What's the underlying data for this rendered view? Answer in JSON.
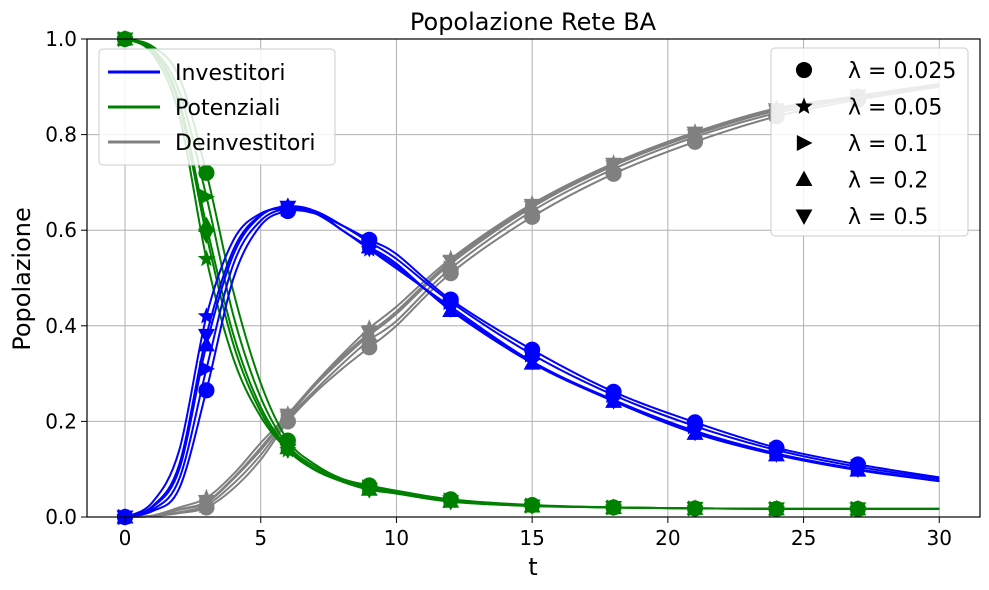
{
  "chart_data": {
    "type": "line",
    "title": "Popolazione Rete BA",
    "xlabel": "t",
    "ylabel": "Popolazione",
    "xlim": [
      -1.4,
      31.5
    ],
    "ylim": [
      0,
      1.0
    ],
    "xticks": [
      0,
      5,
      10,
      15,
      20,
      25,
      30
    ],
    "xtick_labels": [
      "0",
      "5",
      "10",
      "15",
      "20",
      "25",
      "30"
    ],
    "yticks": [
      0.0,
      0.2,
      0.4,
      0.6,
      0.8,
      1.0
    ],
    "ytick_labels": [
      "0.0",
      "0.2",
      "0.4",
      "0.6",
      "0.8",
      "1.0"
    ],
    "grid": true,
    "colors": {
      "Investitori": "#0000ff",
      "Potenziali": "#008000",
      "Deinvestitori": "#808080"
    },
    "legend_groups": {
      "placement": "top-left",
      "entries": [
        "Investitori",
        "Potenziali",
        "Deinvestitori"
      ]
    },
    "legend_markers": {
      "placement": "top-right",
      "entries": [
        {
          "marker": "circle",
          "label": "λ = 0.025"
        },
        {
          "marker": "star",
          "label": "λ = 0.05"
        },
        {
          "marker": "triangle-right",
          "label": "λ = 0.1"
        },
        {
          "marker": "triangle-up",
          "label": "λ = 0.2"
        },
        {
          "marker": "triangle-down",
          "label": "λ = 0.5"
        }
      ]
    },
    "marker_x": [
      0,
      3,
      6,
      9,
      12,
      15,
      18,
      21,
      24,
      27
    ],
    "series": [
      {
        "group": "Potenziali",
        "lambda": "0.025",
        "marker": "circle",
        "x": [
          0,
          1,
          2,
          3,
          4,
          5,
          6,
          7,
          8,
          9,
          10,
          12,
          15,
          18,
          21,
          24,
          27,
          30
        ],
        "y": [
          1.0,
          0.985,
          0.92,
          0.72,
          0.47,
          0.28,
          0.16,
          0.11,
          0.08,
          0.066,
          0.055,
          0.037,
          0.025,
          0.02,
          0.018,
          0.017,
          0.017,
          0.017
        ]
      },
      {
        "group": "Potenziali",
        "lambda": "0.05",
        "marker": "star",
        "x": [
          0,
          1,
          2,
          3,
          4,
          5,
          6,
          7,
          8,
          9,
          10,
          12,
          15,
          18,
          21,
          24,
          27,
          30
        ],
        "y": [
          1.0,
          0.97,
          0.84,
          0.54,
          0.33,
          0.21,
          0.14,
          0.1,
          0.075,
          0.06,
          0.05,
          0.034,
          0.024,
          0.02,
          0.018,
          0.017,
          0.017,
          0.017
        ]
      },
      {
        "group": "Potenziali",
        "lambda": "0.1",
        "marker": "triangle-right",
        "x": [
          0,
          1,
          2,
          3,
          4,
          5,
          6,
          7,
          8,
          9,
          10,
          12,
          15,
          18,
          21,
          24,
          27,
          30
        ],
        "y": [
          1.0,
          0.98,
          0.89,
          0.67,
          0.42,
          0.25,
          0.15,
          0.105,
          0.078,
          0.062,
          0.052,
          0.035,
          0.024,
          0.02,
          0.018,
          0.017,
          0.017,
          0.017
        ]
      },
      {
        "group": "Potenziali",
        "lambda": "0.2",
        "marker": "triangle-up",
        "x": [
          0,
          1,
          2,
          3,
          4,
          5,
          6,
          7,
          8,
          9,
          10,
          12,
          15,
          18,
          21,
          24,
          27,
          30
        ],
        "y": [
          1.0,
          0.978,
          0.87,
          0.61,
          0.38,
          0.23,
          0.145,
          0.1,
          0.076,
          0.058,
          0.05,
          0.033,
          0.023,
          0.02,
          0.018,
          0.017,
          0.017,
          0.017
        ]
      },
      {
        "group": "Potenziali",
        "lambda": "0.5",
        "marker": "triangle-down",
        "x": [
          0,
          1,
          2,
          3,
          4,
          5,
          6,
          7,
          8,
          9,
          10,
          12,
          15,
          18,
          21,
          24,
          27,
          30
        ],
        "y": [
          1.0,
          0.976,
          0.86,
          0.59,
          0.36,
          0.22,
          0.14,
          0.098,
          0.074,
          0.057,
          0.049,
          0.032,
          0.023,
          0.02,
          0.018,
          0.017,
          0.017,
          0.017
        ]
      },
      {
        "group": "Investitori",
        "lambda": "0.025",
        "marker": "circle",
        "x": [
          0,
          1,
          2,
          3,
          4,
          5,
          6,
          7,
          8,
          9,
          10,
          12,
          15,
          18,
          21,
          24,
          27,
          30
        ],
        "y": [
          0.0,
          0.012,
          0.06,
          0.265,
          0.5,
          0.61,
          0.64,
          0.635,
          0.61,
          0.58,
          0.55,
          0.455,
          0.35,
          0.262,
          0.198,
          0.145,
          0.11,
          0.083
        ]
      },
      {
        "group": "Investitori",
        "lambda": "0.05",
        "marker": "star",
        "x": [
          0,
          1,
          2,
          3,
          4,
          5,
          6,
          7,
          8,
          9,
          10,
          12,
          15,
          18,
          21,
          24,
          27,
          30
        ],
        "y": [
          0.0,
          0.03,
          0.14,
          0.42,
          0.58,
          0.635,
          0.645,
          0.635,
          0.6,
          0.56,
          0.52,
          0.44,
          0.325,
          0.245,
          0.18,
          0.133,
          0.1,
          0.075
        ]
      },
      {
        "group": "Investitori",
        "lambda": "0.1",
        "marker": "triangle-right",
        "x": [
          0,
          1,
          2,
          3,
          4,
          5,
          6,
          7,
          8,
          9,
          10,
          12,
          15,
          18,
          21,
          24,
          27,
          30
        ],
        "y": [
          0.0,
          0.015,
          0.08,
          0.31,
          0.53,
          0.62,
          0.645,
          0.64,
          0.61,
          0.575,
          0.54,
          0.45,
          0.34,
          0.255,
          0.19,
          0.14,
          0.105,
          0.08
        ]
      },
      {
        "group": "Investitori",
        "lambda": "0.2",
        "marker": "triangle-up",
        "x": [
          0,
          1,
          2,
          3,
          4,
          5,
          6,
          7,
          8,
          9,
          10,
          12,
          15,
          18,
          21,
          24,
          27,
          30
        ],
        "y": [
          0.0,
          0.02,
          0.1,
          0.36,
          0.55,
          0.63,
          0.65,
          0.64,
          0.6,
          0.565,
          0.53,
          0.432,
          0.322,
          0.242,
          0.175,
          0.13,
          0.098,
          0.075
        ]
      },
      {
        "group": "Investitori",
        "lambda": "0.5",
        "marker": "triangle-down",
        "x": [
          0,
          1,
          2,
          3,
          4,
          5,
          6,
          7,
          8,
          9,
          10,
          12,
          15,
          18,
          21,
          24,
          27,
          30
        ],
        "y": [
          0.0,
          0.022,
          0.11,
          0.38,
          0.56,
          0.632,
          0.648,
          0.638,
          0.6,
          0.562,
          0.525,
          0.435,
          0.325,
          0.243,
          0.177,
          0.132,
          0.1,
          0.076
        ]
      },
      {
        "group": "Deinvestitori",
        "lambda": "0.025",
        "marker": "circle",
        "x": [
          0,
          1,
          2,
          3,
          4,
          5,
          6,
          7,
          8,
          9,
          10,
          12,
          15,
          18,
          21,
          24,
          27,
          30
        ],
        "y": [
          0.0,
          0.002,
          0.008,
          0.02,
          0.06,
          0.12,
          0.2,
          0.26,
          0.31,
          0.355,
          0.4,
          0.51,
          0.628,
          0.718,
          0.785,
          0.838,
          0.873,
          0.9
        ]
      },
      {
        "group": "Deinvestitori",
        "lambda": "0.05",
        "marker": "star",
        "x": [
          0,
          1,
          2,
          3,
          4,
          5,
          6,
          7,
          8,
          9,
          10,
          12,
          15,
          18,
          21,
          24,
          27,
          30
        ],
        "y": [
          0.0,
          0.003,
          0.02,
          0.04,
          0.09,
          0.155,
          0.215,
          0.28,
          0.34,
          0.395,
          0.44,
          0.54,
          0.655,
          0.74,
          0.805,
          0.855,
          0.88,
          0.905
        ]
      },
      {
        "group": "Deinvestitori",
        "lambda": "0.1",
        "marker": "triangle-right",
        "x": [
          0,
          1,
          2,
          3,
          4,
          5,
          6,
          7,
          8,
          9,
          10,
          12,
          15,
          18,
          21,
          24,
          27,
          30
        ],
        "y": [
          0.0,
          0.002,
          0.01,
          0.025,
          0.07,
          0.13,
          0.205,
          0.265,
          0.32,
          0.37,
          0.41,
          0.52,
          0.64,
          0.728,
          0.795,
          0.845,
          0.877,
          0.902
        ]
      },
      {
        "group": "Deinvestitori",
        "lambda": "0.2",
        "marker": "triangle-up",
        "x": [
          0,
          1,
          2,
          3,
          4,
          5,
          6,
          7,
          8,
          9,
          10,
          12,
          15,
          18,
          21,
          24,
          27,
          30
        ],
        "y": [
          0.0,
          0.002,
          0.015,
          0.03,
          0.08,
          0.14,
          0.21,
          0.275,
          0.33,
          0.38,
          0.425,
          0.53,
          0.648,
          0.735,
          0.8,
          0.85,
          0.88,
          0.905
        ]
      },
      {
        "group": "Deinvestitori",
        "lambda": "0.5",
        "marker": "triangle-down",
        "x": [
          0,
          1,
          2,
          3,
          4,
          5,
          6,
          7,
          8,
          9,
          10,
          12,
          15,
          18,
          21,
          24,
          27,
          30
        ],
        "y": [
          0.0,
          0.002,
          0.016,
          0.032,
          0.082,
          0.145,
          0.213,
          0.278,
          0.335,
          0.385,
          0.43,
          0.535,
          0.652,
          0.738,
          0.803,
          0.852,
          0.881,
          0.906
        ]
      }
    ]
  }
}
